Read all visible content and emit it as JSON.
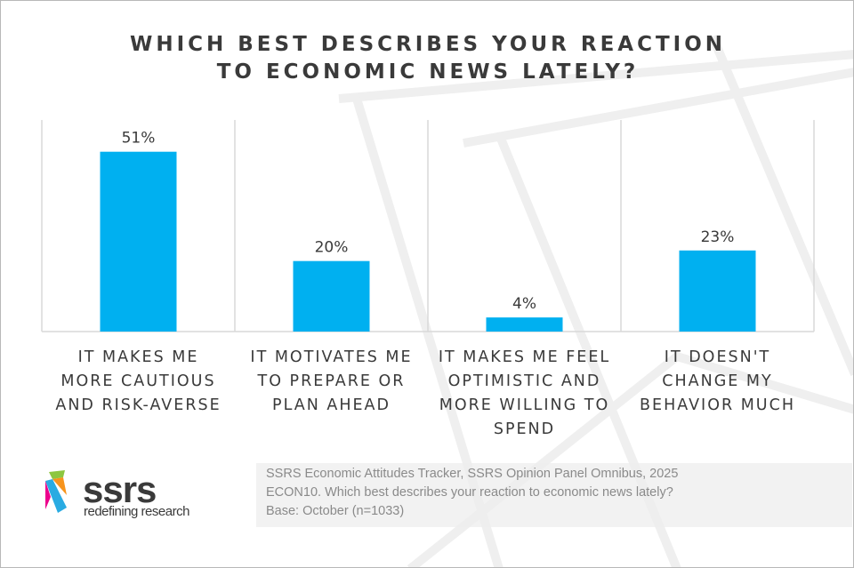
{
  "chart_data": {
    "type": "bar",
    "title": "WHICH BEST DESCRIBES YOUR REACTION TO ECONOMIC NEWS LATELY?",
    "title_lines": [
      "WHICH BEST DESCRIBES YOUR REACTION",
      "TO ECONOMIC NEWS LATELY?"
    ],
    "categories": [
      [
        "IT MAKES ME",
        "MORE CAUTIOUS",
        "AND RISK-AVERSE"
      ],
      [
        "IT MOTIVATES ME",
        "TO PREPARE OR",
        "PLAN AHEAD"
      ],
      [
        "IT MAKES ME FEEL",
        "OPTIMISTIC AND",
        "MORE WILLING TO",
        "SPEND"
      ],
      [
        "IT DOESN'T",
        "CHANGE MY",
        "BEHAVIOR MUCH"
      ]
    ],
    "values": [
      51,
      20,
      4,
      23
    ],
    "data_labels": [
      "51%",
      "20%",
      "4%",
      "23%"
    ],
    "ylim": [
      0,
      60
    ],
    "grid": false,
    "bar_color": "#00b0f0"
  },
  "logo": {
    "name": "ssrs",
    "tagline": "redefining research"
  },
  "source": [
    "SSRS Economic Attitudes Tracker, SSRS Opinion Panel Omnibus, 2025",
    "ECON10. Which best describes your reaction to economic news lately?",
    "Base: October (n=1033)"
  ]
}
